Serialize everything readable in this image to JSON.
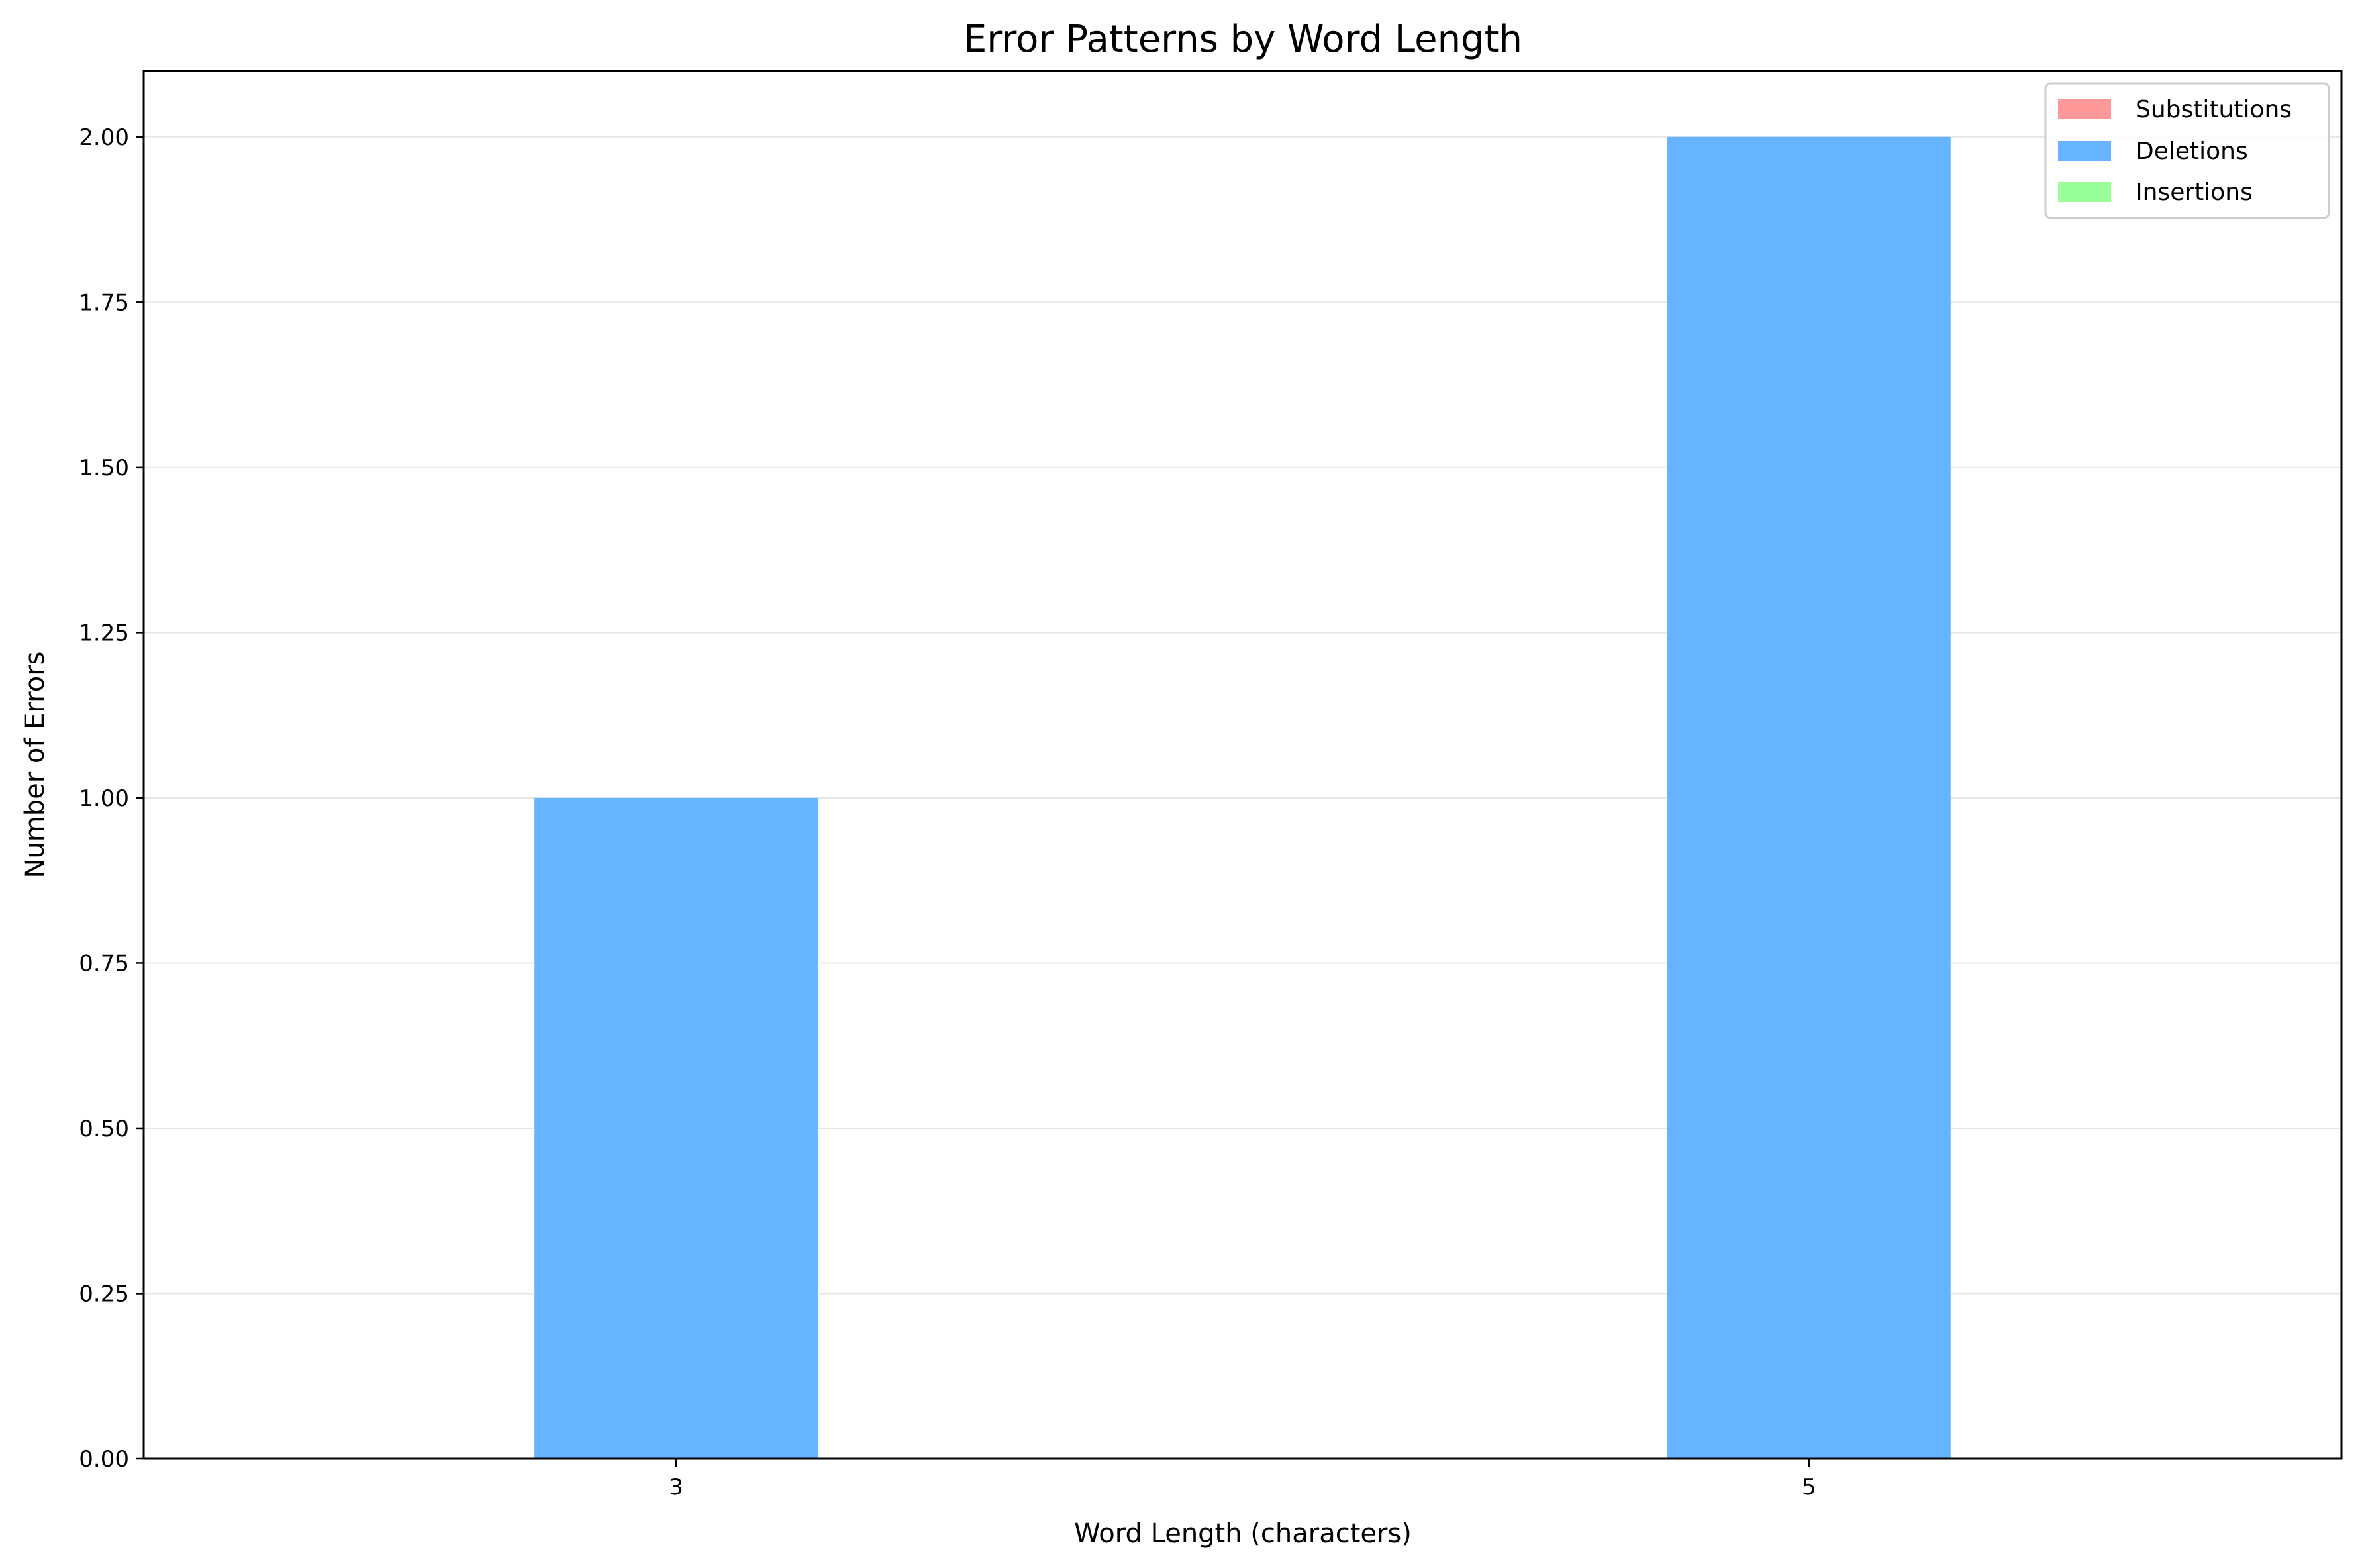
{
  "chart_data": {
    "type": "bar",
    "title": "Error Patterns by Word Length",
    "xlabel": "Word Length (characters)",
    "ylabel": "Number of Errors",
    "categories": [
      "3",
      "5"
    ],
    "series": [
      {
        "name": "Substitutions",
        "values": [
          0,
          0
        ],
        "color": "#ff9999"
      },
      {
        "name": "Deletions",
        "values": [
          1,
          2
        ],
        "color": "#66b3ff"
      },
      {
        "name": "Insertions",
        "values": [
          0,
          0
        ],
        "color": "#99ff99"
      }
    ],
    "stacked": true,
    "ylim": [
      0,
      2.1
    ],
    "yticks": [
      "0.00",
      "0.25",
      "0.50",
      "0.75",
      "1.00",
      "1.25",
      "1.50",
      "1.75",
      "2.00"
    ],
    "grid": "horizontal",
    "legend_position": "top-right"
  }
}
